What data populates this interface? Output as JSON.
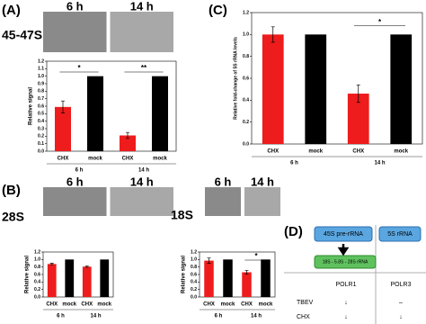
{
  "panels": [
    "(A)",
    "(B)",
    "(C)",
    "(D)"
  ],
  "chart_data": [
    {
      "type": "bar",
      "blot_name": "45-47S",
      "blot_labels": [
        "6 h",
        "14 h"
      ],
      "y_label": "Relative signal",
      "categories": [
        "CHX",
        "mock",
        "CHX",
        "mock"
      ],
      "groups": [
        "6 h",
        "14 h"
      ],
      "values": [
        0.59,
        1.0,
        0.21,
        1.0
      ],
      "errors": [
        0.08,
        0,
        0.04,
        0
      ],
      "colors": [
        "#ee1c1c",
        "#000000",
        "#ee1c1c",
        "#000000"
      ],
      "significance": [
        "*",
        "**"
      ],
      "ylim": [
        0,
        1.2
      ],
      "yticks": [
        {
          "value": 0,
          "label": "0.0"
        },
        0.1,
        0.2,
        0.3,
        0.4,
        0.5,
        0.6,
        0.7,
        0.8,
        0.9,
        {
          "value": 1,
          "label": "1.0"
        },
        1.1,
        1.2
      ]
    },
    {
      "type": "bar",
      "y_label": "Relative fold-change of 5S rRNA levels",
      "categories": [
        "CHX",
        "mock",
        "CHX",
        "mock"
      ],
      "groups": [
        "6 h",
        "14 h"
      ],
      "values": [
        1.0,
        1.0,
        0.46,
        1.0
      ],
      "errors": [
        0.07,
        0,
        0.08,
        0
      ],
      "colors": [
        "#ee1c1c",
        "#000000",
        "#ee1c1c",
        "#000000"
      ],
      "significance": [
        null,
        "*"
      ],
      "ylim": [
        0,
        1.2
      ],
      "yticks": [
        {
          "value": 0,
          "label": "0.0"
        },
        0.2,
        0.4,
        0.6,
        0.8,
        {
          "value": 1,
          "label": "1.0"
        },
        1.2
      ]
    },
    {
      "type": "bar",
      "blot_name": "28S",
      "blot_labels": [
        "6 h",
        "14 h"
      ],
      "y_label": "Relative signal",
      "categories": [
        "CHX",
        "mock",
        "CHX",
        "mock"
      ],
      "groups": [
        "6 h",
        "14 h"
      ],
      "values": [
        0.88,
        1.0,
        0.81,
        1.0
      ],
      "errors": [
        0.02,
        0,
        0.02,
        0
      ],
      "colors": [
        "#ee1c1c",
        "#000000",
        "#ee1c1c",
        "#000000"
      ],
      "significance": [
        null,
        null
      ],
      "ylim": [
        0,
        1.2
      ],
      "yticks": [
        {
          "value": 0,
          "label": "0.0"
        },
        0.2,
        0.4,
        0.6,
        0.8,
        {
          "value": 1,
          "label": "1.0"
        },
        1.2
      ]
    },
    {
      "type": "bar",
      "blot_name": "18S",
      "blot_labels": [
        "6 h",
        "14 h"
      ],
      "y_label": "Relative signal",
      "categories": [
        "CHX",
        "mock",
        "CHX",
        "mock"
      ],
      "groups": [
        "6 h",
        "14 h"
      ],
      "values": [
        0.97,
        1.0,
        0.66,
        1.0
      ],
      "errors": [
        0.07,
        0,
        0.05,
        0
      ],
      "colors": [
        "#ee1c1c",
        "#000000",
        "#ee1c1c",
        "#000000"
      ],
      "significance": [
        null,
        "*"
      ],
      "ylim": [
        0,
        1.2
      ],
      "yticks": [
        {
          "value": 0,
          "label": "0.0"
        },
        0.2,
        0.4,
        0.6,
        0.8,
        {
          "value": 1,
          "label": "1.0"
        },
        1.2
      ]
    }
  ],
  "diagram": {
    "boxes": [
      "45S pre-rRNA",
      "5S rRNA",
      "18S - 5.8S - 28S rRNA"
    ],
    "table": {
      "header": [
        "POLR1",
        "POLR3"
      ],
      "rows": [
        [
          "TBEV",
          "↓",
          "–"
        ],
        [
          "CHX",
          "↓",
          "↓"
        ]
      ]
    }
  }
}
